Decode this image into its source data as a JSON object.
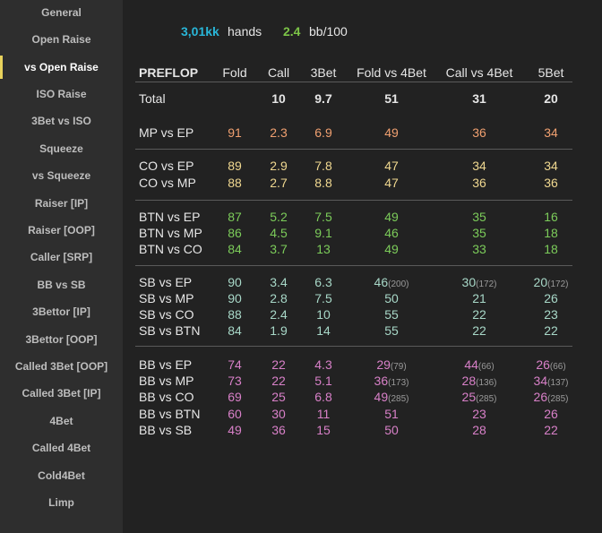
{
  "sidebar": {
    "items": [
      {
        "label": "General",
        "active": false
      },
      {
        "label": "Open Raise",
        "active": false
      },
      {
        "label": "vs Open Raise",
        "active": true
      },
      {
        "label": "ISO Raise",
        "active": false
      },
      {
        "label": "3Bet vs ISO",
        "active": false
      },
      {
        "label": "Squeeze",
        "active": false
      },
      {
        "label": "vs Squeeze",
        "active": false
      },
      {
        "label": "Raiser [IP]",
        "active": false
      },
      {
        "label": "Raiser [OOP]",
        "active": false
      },
      {
        "label": "Caller [SRP]",
        "active": false
      },
      {
        "label": "BB vs SB",
        "active": false
      },
      {
        "label": "3Bettor [IP]",
        "active": false
      },
      {
        "label": "3Bettor [OOP]",
        "active": false
      },
      {
        "label": "Called 3Bet [OOP]",
        "active": false
      },
      {
        "label": "Called 3Bet [IP]",
        "active": false
      },
      {
        "label": "4Bet",
        "active": false
      },
      {
        "label": "Called 4Bet",
        "active": false
      },
      {
        "label": "Cold4Bet",
        "active": false
      },
      {
        "label": "Limp",
        "active": false
      }
    ]
  },
  "summary": {
    "hands_value": "3,01kk",
    "hands_label": "hands",
    "winrate_value": "2.4",
    "winrate_label": "bb/100"
  },
  "table": {
    "headers": [
      "PREFLOP",
      "Fold",
      "Call",
      "3Bet",
      "Fold vs 4Bet",
      "Call vs 4Bet",
      "5Bet"
    ],
    "colors": {
      "orange": "#f0a070",
      "yellow": "#f0d890",
      "green": "#7ccc5a",
      "teal": "#a8d8c8",
      "pink": "#d880c8"
    },
    "total": {
      "label": "Total",
      "cells": [
        "",
        "10",
        "9.7",
        "51",
        "31",
        "20"
      ]
    },
    "groups": [
      {
        "color": "orange",
        "rows": [
          {
            "label": "MP vs EP",
            "cells": [
              "91",
              "2.3",
              "6.9",
              "49",
              "36",
              "34"
            ]
          }
        ]
      },
      {
        "color": "yellow",
        "rows": [
          {
            "label": "CO vs EP",
            "cells": [
              "89",
              "2.9",
              "7.8",
              "47",
              "34",
              "34"
            ]
          },
          {
            "label": "CO vs MP",
            "cells": [
              "88",
              "2.7",
              "8.8",
              "47",
              "36",
              "36"
            ]
          }
        ]
      },
      {
        "color": "green",
        "rows": [
          {
            "label": "BTN vs EP",
            "cells": [
              "87",
              "5.2",
              "7.5",
              "49",
              "35",
              "16"
            ]
          },
          {
            "label": "BTN vs MP",
            "cells": [
              "86",
              "4.5",
              "9.1",
              "46",
              "35",
              "18"
            ]
          },
          {
            "label": "BTN vs CO",
            "cells": [
              "84",
              "3.7",
              "13",
              "49",
              "33",
              "18"
            ]
          }
        ]
      },
      {
        "color": "teal",
        "rows": [
          {
            "label": "SB vs EP",
            "cells": [
              "90",
              "3.4",
              "6.3",
              "46",
              "30",
              "20"
            ],
            "subs": [
              "",
              "",
              "",
              "(200)",
              "(172)",
              "(172)"
            ]
          },
          {
            "label": "SB vs MP",
            "cells": [
              "90",
              "2.8",
              "7.5",
              "50",
              "21",
              "26"
            ]
          },
          {
            "label": "SB vs CO",
            "cells": [
              "88",
              "2.4",
              "10",
              "55",
              "22",
              "23"
            ]
          },
          {
            "label": "SB vs BTN",
            "cells": [
              "84",
              "1.9",
              "14",
              "55",
              "22",
              "22"
            ]
          }
        ]
      },
      {
        "color": "pink",
        "rows": [
          {
            "label": "BB vs EP",
            "cells": [
              "74",
              "22",
              "4.3",
              "29",
              "44",
              "26"
            ],
            "subs": [
              "",
              "",
              "",
              "(79)",
              "(66)",
              "(66)"
            ]
          },
          {
            "label": "BB vs MP",
            "cells": [
              "73",
              "22",
              "5.1",
              "36",
              "28",
              "34"
            ],
            "subs": [
              "",
              "",
              "",
              "(173)",
              "(136)",
              "(137)"
            ]
          },
          {
            "label": "BB vs CO",
            "cells": [
              "69",
              "25",
              "6.8",
              "49",
              "25",
              "26"
            ],
            "subs": [
              "",
              "",
              "",
              "(285)",
              "(285)",
              "(285)"
            ]
          },
          {
            "label": "BB vs BTN",
            "cells": [
              "60",
              "30",
              "11",
              "51",
              "23",
              "26"
            ]
          },
          {
            "label": "BB vs SB",
            "cells": [
              "49",
              "36",
              "15",
              "50",
              "28",
              "22"
            ]
          }
        ]
      }
    ]
  }
}
